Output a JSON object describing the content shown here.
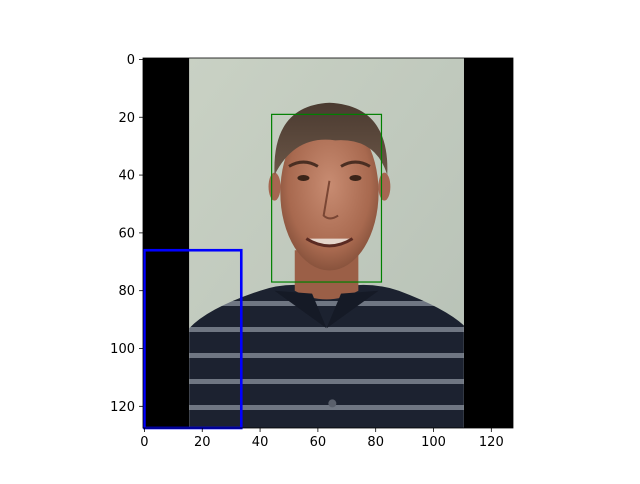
{
  "chart_data": {
    "type": "image",
    "title": "",
    "xlabel": "",
    "ylabel": "",
    "xlim": [
      -0.5,
      127.5
    ],
    "ylim": [
      127.5,
      -0.5
    ],
    "x_ticks": [
      0,
      20,
      40,
      60,
      80,
      100,
      120
    ],
    "y_ticks": [
      0,
      20,
      40,
      60,
      80,
      100,
      120
    ],
    "image": {
      "description": "photo of a smiling middle-aged man in a navy striped polo shirt against a pale background, with black padding bars on the left and right",
      "padding_left_end": 15.5,
      "padding_right_start": 110.5
    },
    "boxes": [
      {
        "color": "#008000",
        "x0": 44,
        "y0": 19,
        "x1": 82,
        "y1": 77
      },
      {
        "color": "#0000ff",
        "x0": 0,
        "y0": 66,
        "x1": 33.5,
        "y1": 127.5
      }
    ]
  }
}
